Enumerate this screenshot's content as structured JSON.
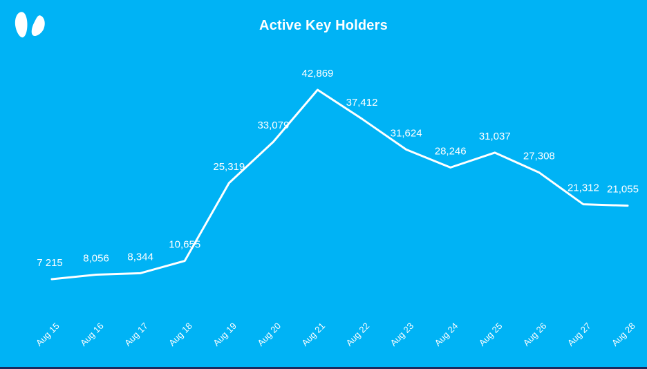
{
  "page": {
    "background_color": "#00b3f5",
    "bottom_strip_color": "#1a2a5e"
  },
  "logo": {
    "name": "two-petal-brand-logo",
    "color": "#ffffff"
  },
  "chart_data": {
    "type": "line",
    "title": "Active Key Holders",
    "title_color": "#ffffff",
    "categories": [
      "Aug 15",
      "Aug 16",
      "Aug 17",
      "Aug 18",
      "Aug 19",
      "Aug 20",
      "Aug 21",
      "Aug 22",
      "Aug 23",
      "Aug 24",
      "Aug 25",
      "Aug 26",
      "Aug 27",
      "Aug 28"
    ],
    "values": [
      7215,
      8056,
      8344,
      10655,
      25319,
      33079,
      42869,
      37412,
      31624,
      28246,
      31037,
      27308,
      21312,
      21055
    ],
    "point_labels": [
      "7 215",
      "8,056",
      "8,344",
      "10,655",
      "25,319",
      "33,079",
      "42,869",
      "37,412",
      "31,624",
      "28,246",
      "31,037",
      "27,308",
      "21,312",
      "21,055"
    ],
    "xlabel": "",
    "ylabel": "",
    "y_range_implied": [
      7215,
      42869
    ],
    "line_color": "#ffffff",
    "data_label_color": "#ffffff",
    "axis_label_color": "#ffffff",
    "grid": false,
    "legend": false,
    "markers": false,
    "x_tick_rotation_deg": -45
  }
}
